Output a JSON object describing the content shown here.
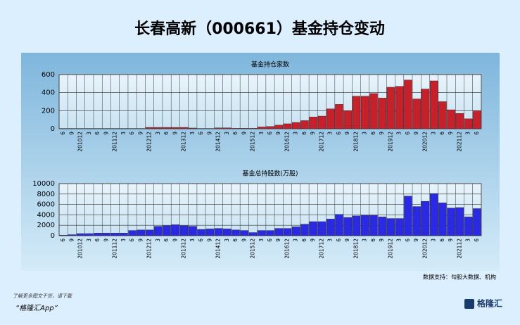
{
  "header": {
    "title": "长春高新（000661）基金持仓变动"
  },
  "chart_data": [
    {
      "type": "bar",
      "title": "基金持仓家数",
      "color": "#c8202a",
      "grid": true,
      "categories": [
        "6",
        "9",
        "201012",
        "3",
        "6",
        "9",
        "201112",
        "3",
        "6",
        "9",
        "201212",
        "3",
        "6",
        "9",
        "201312",
        "3",
        "6",
        "9",
        "201412",
        "3",
        "6",
        "9",
        "201512",
        "3",
        "6",
        "9",
        "201612",
        "3",
        "6",
        "9",
        "201712",
        "3",
        "6",
        "9",
        "201812",
        "3",
        "6",
        "9",
        "201912",
        "3",
        "6",
        "9",
        "202012",
        "3",
        "6",
        "9",
        "202112",
        "3",
        "6"
      ],
      "values": [
        3,
        3,
        3,
        3,
        3,
        3,
        3,
        3,
        3,
        3,
        15,
        15,
        15,
        15,
        15,
        8,
        3,
        3,
        10,
        10,
        5,
        5,
        5,
        20,
        25,
        40,
        55,
        70,
        90,
        130,
        140,
        220,
        270,
        200,
        360,
        360,
        390,
        340,
        460,
        470,
        540,
        330,
        440,
        530,
        300,
        210,
        170,
        110,
        200
      ],
      "ylim": [
        0,
        600
      ],
      "yticks": [
        0,
        200,
        400,
        600
      ]
    },
    {
      "type": "bar",
      "title": "基金总持股数(万股)",
      "color": "#2a2ae6",
      "grid": true,
      "categories": [
        "6",
        "9",
        "201012",
        "3",
        "6",
        "9",
        "201112",
        "3",
        "6",
        "9",
        "201212",
        "3",
        "6",
        "9",
        "201312",
        "3",
        "6",
        "9",
        "201412",
        "3",
        "6",
        "9",
        "201512",
        "3",
        "6",
        "9",
        "201612",
        "3",
        "6",
        "9",
        "201712",
        "3",
        "6",
        "9",
        "201812",
        "3",
        "6",
        "9",
        "201912",
        "3",
        "6",
        "9",
        "202012",
        "3",
        "6",
        "9",
        "202112",
        "3",
        "6"
      ],
      "values": [
        100,
        200,
        400,
        400,
        500,
        500,
        500,
        500,
        1000,
        1100,
        1100,
        1800,
        1900,
        2100,
        1900,
        1800,
        1200,
        1300,
        1400,
        1300,
        1100,
        1000,
        600,
        1000,
        1000,
        1400,
        1400,
        1700,
        2200,
        2700,
        2700,
        3200,
        4100,
        3500,
        3800,
        3900,
        3900,
        3600,
        3300,
        3300,
        7600,
        5600,
        6600,
        8100,
        6300,
        5300,
        5400,
        3600,
        5200
      ],
      "ylim": [
        0,
        10000
      ],
      "yticks": [
        0,
        2000,
        4000,
        6000,
        8000,
        10000
      ]
    }
  ],
  "footer": {
    "source": "数据支持：勾股大数据、机构",
    "promo": "了解更多图文干货，请下载",
    "app": "“格隆汇App”",
    "logo": "格隆汇"
  }
}
